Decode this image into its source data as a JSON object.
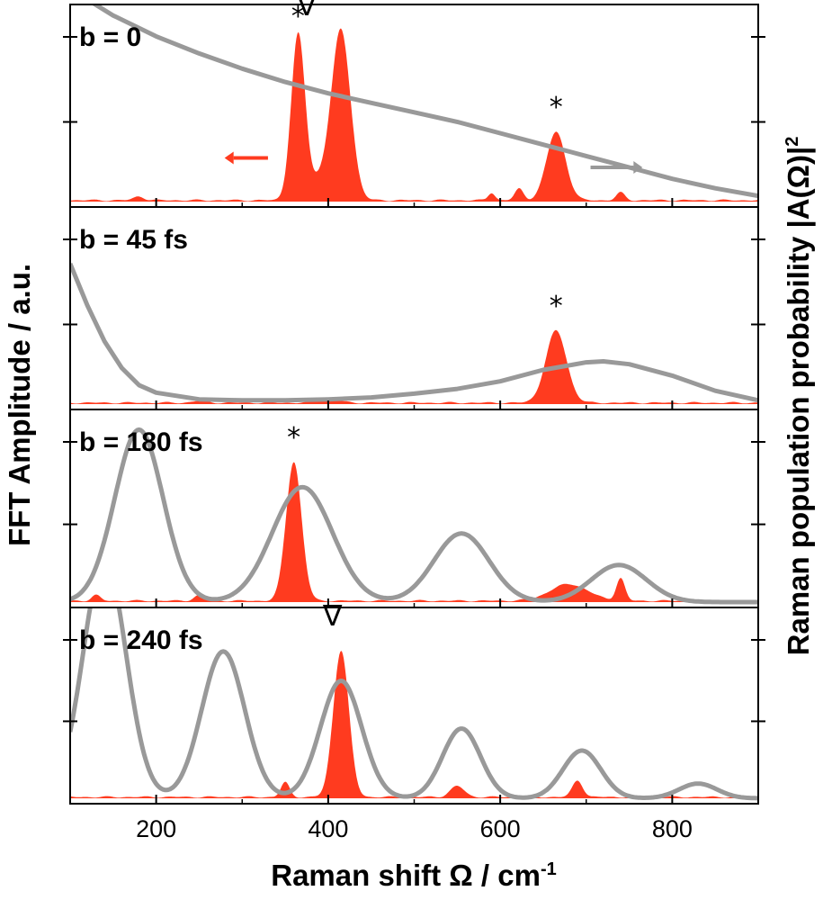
{
  "chart_data": {
    "type": "area",
    "title": "",
    "xlabel_main": "Raman shift Ω / cm",
    "xlabel_sup": "-1",
    "ylabel_left": "FFT Amplitude / a.u.",
    "ylabel_right_main": "Raman population probability |A(Ω)|",
    "ylabel_right_sup": "2",
    "xlim": [
      100,
      900
    ],
    "xticks": [
      200,
      400,
      600,
      800
    ],
    "colors": {
      "fft_fill": "#ff3b1f",
      "population_line": "#999999",
      "axis": "#000000"
    },
    "series_names": [
      "FFT amplitude",
      "Raman population probability"
    ],
    "panels": [
      {
        "label": "b = 0",
        "fft_peaks": [
          {
            "center": 365,
            "width": 8,
            "height": 0.86
          },
          {
            "center": 415,
            "width": 11,
            "height": 0.88
          },
          {
            "center": 390,
            "width": 14,
            "height": 0.1
          },
          {
            "center": 665,
            "width": 11,
            "height": 0.36
          },
          {
            "center": 622,
            "width": 5,
            "height": 0.06
          },
          {
            "center": 590,
            "width": 4,
            "height": 0.04
          },
          {
            "center": 740,
            "width": 5,
            "height": 0.04
          },
          {
            "center": 180,
            "width": 6,
            "height": 0.02
          }
        ],
        "population_points": [
          [
            100,
            1.12
          ],
          [
            150,
            0.98
          ],
          [
            200,
            0.87
          ],
          [
            250,
            0.78
          ],
          [
            300,
            0.7
          ],
          [
            350,
            0.63
          ],
          [
            400,
            0.57
          ],
          [
            450,
            0.52
          ],
          [
            500,
            0.47
          ],
          [
            550,
            0.42
          ],
          [
            600,
            0.36
          ],
          [
            650,
            0.3
          ],
          [
            700,
            0.24
          ],
          [
            750,
            0.18
          ],
          [
            800,
            0.12
          ],
          [
            850,
            0.07
          ],
          [
            900,
            0.03
          ]
        ],
        "annotations": [
          {
            "text": "*",
            "x": 365,
            "y": 0.93
          },
          {
            "text": "∇",
            "x": 375,
            "y": 0.98
          },
          {
            "text": "*",
            "x": 665,
            "y": 0.45
          }
        ],
        "arrows": [
          {
            "direction": "left",
            "x_start": 330,
            "x_end": 290,
            "y": 0.23
          },
          {
            "direction": "right",
            "x_start": 705,
            "x_end": 755,
            "y": 0.18
          }
        ]
      },
      {
        "label": "b = 45 fs",
        "fft_peaks": [
          {
            "center": 665,
            "width": 12,
            "height": 0.38
          },
          {
            "center": 400,
            "width": 12,
            "height": 0.02
          },
          {
            "center": 250,
            "width": 8,
            "height": 0.01
          }
        ],
        "population_points": [
          [
            100,
            0.74
          ],
          [
            120,
            0.52
          ],
          [
            140,
            0.33
          ],
          [
            160,
            0.19
          ],
          [
            180,
            0.1
          ],
          [
            200,
            0.06
          ],
          [
            250,
            0.025
          ],
          [
            300,
            0.02
          ],
          [
            350,
            0.02
          ],
          [
            400,
            0.025
          ],
          [
            450,
            0.035
          ],
          [
            500,
            0.055
          ],
          [
            550,
            0.08
          ],
          [
            600,
            0.12
          ],
          [
            650,
            0.18
          ],
          [
            700,
            0.22
          ],
          [
            720,
            0.225
          ],
          [
            750,
            0.21
          ],
          [
            800,
            0.15
          ],
          [
            850,
            0.07
          ],
          [
            900,
            0.02
          ]
        ],
        "annotations": [
          {
            "text": "*",
            "x": 665,
            "y": 0.47
          }
        ],
        "arrows": []
      },
      {
        "label": "b = 180 fs",
        "fft_peaks": [
          {
            "center": 360,
            "width": 9,
            "height": 0.75
          },
          {
            "center": 740,
            "width": 5,
            "height": 0.12
          },
          {
            "center": 680,
            "width": 22,
            "height": 0.09
          },
          {
            "center": 250,
            "width": 6,
            "height": 0.03
          },
          {
            "center": 130,
            "width": 5,
            "height": 0.03
          }
        ],
        "population_gaussians": [
          {
            "center": 180,
            "sigma": 28,
            "height": 0.93
          },
          {
            "center": 370,
            "sigma": 35,
            "height": 0.62
          },
          {
            "center": 555,
            "sigma": 32,
            "height": 0.37
          },
          {
            "center": 738,
            "sigma": 32,
            "height": 0.2
          }
        ],
        "annotations": [
          {
            "text": "*",
            "x": 360,
            "y": 0.84
          }
        ],
        "arrows": []
      },
      {
        "label": "b = 240 fs",
        "fft_peaks": [
          {
            "center": 415,
            "width": 9,
            "height": 0.8
          },
          {
            "center": 350,
            "width": 5,
            "height": 0.08
          },
          {
            "center": 550,
            "width": 8,
            "height": 0.06
          },
          {
            "center": 690,
            "width": 6,
            "height": 0.09
          }
        ],
        "population_gaussians": [
          {
            "center": 140,
            "sigma": 25,
            "height": 1.3
          },
          {
            "center": 278,
            "sigma": 25,
            "height": 0.8
          },
          {
            "center": 415,
            "sigma": 24,
            "height": 0.64
          },
          {
            "center": 555,
            "sigma": 22,
            "height": 0.38
          },
          {
            "center": 695,
            "sigma": 22,
            "height": 0.26
          },
          {
            "center": 830,
            "sigma": 22,
            "height": 0.08
          }
        ],
        "annotations": [
          {
            "text": "∇",
            "x": 405,
            "y": 0.94
          }
        ],
        "arrows": []
      }
    ]
  }
}
